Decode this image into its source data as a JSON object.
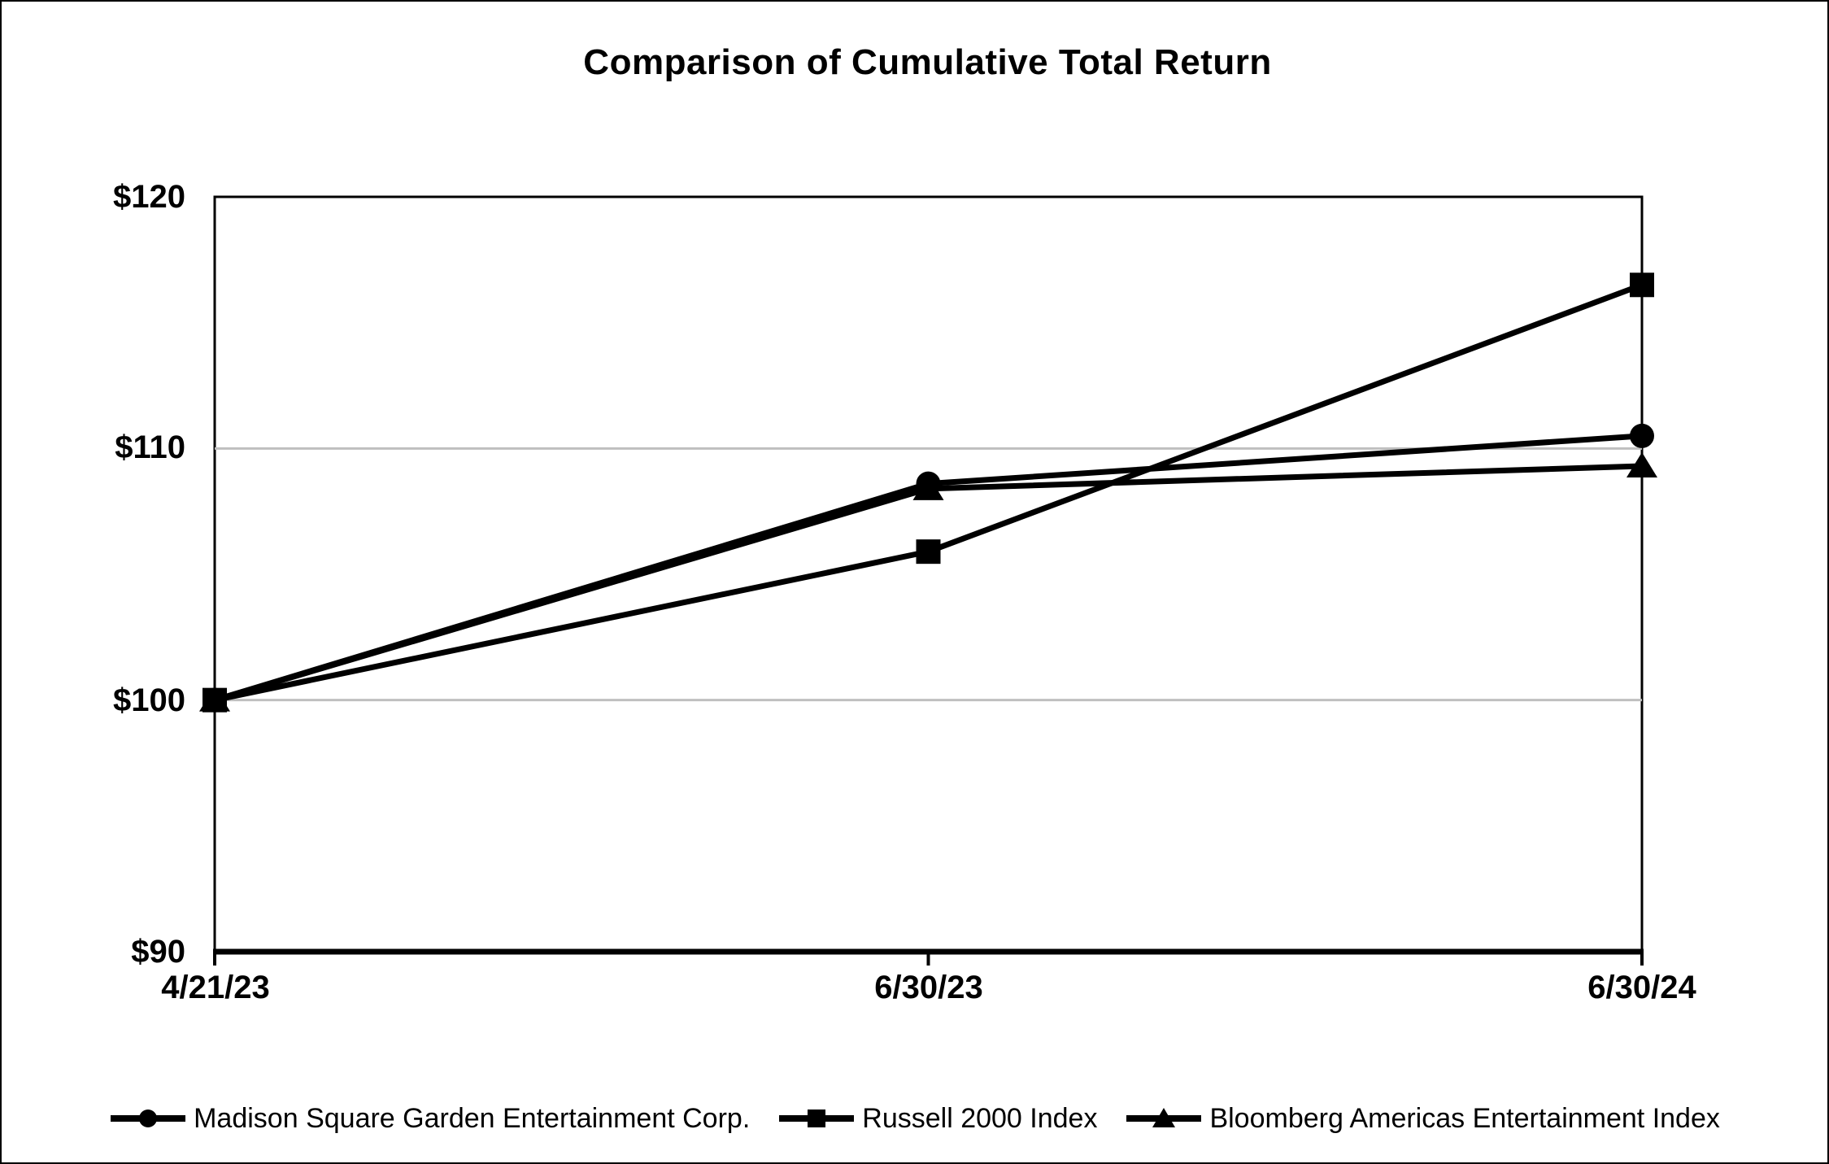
{
  "page": {
    "background": "#ffffff",
    "border_color": "#000000"
  },
  "chart_data": {
    "type": "line",
    "title": "Comparison of Cumulative Total Return",
    "categories": [
      "4/21/23",
      "6/30/23",
      "6/30/24"
    ],
    "series": [
      {
        "name": "Madison Square Garden Entertainment Corp.",
        "marker": "circle",
        "color": "#000000",
        "values": [
          100,
          108.6,
          110.5
        ]
      },
      {
        "name": "Russell 2000 Index",
        "marker": "square",
        "color": "#000000",
        "values": [
          100,
          105.9,
          116.5
        ]
      },
      {
        "name": "Bloomberg Americas Entertainment Index",
        "marker": "triangle",
        "color": "#000000",
        "values": [
          100,
          108.4,
          109.3
        ]
      }
    ],
    "ylim": [
      90,
      120
    ],
    "yticks": [
      90,
      100,
      110,
      120
    ],
    "ytick_labels": [
      "$90",
      "$100",
      "$110",
      "$120"
    ],
    "ytick_prefix": "$",
    "grid": "horizontal",
    "gridline_color": "#bfbfbf",
    "axis_color": "#000000",
    "legend_position": "bottom"
  }
}
